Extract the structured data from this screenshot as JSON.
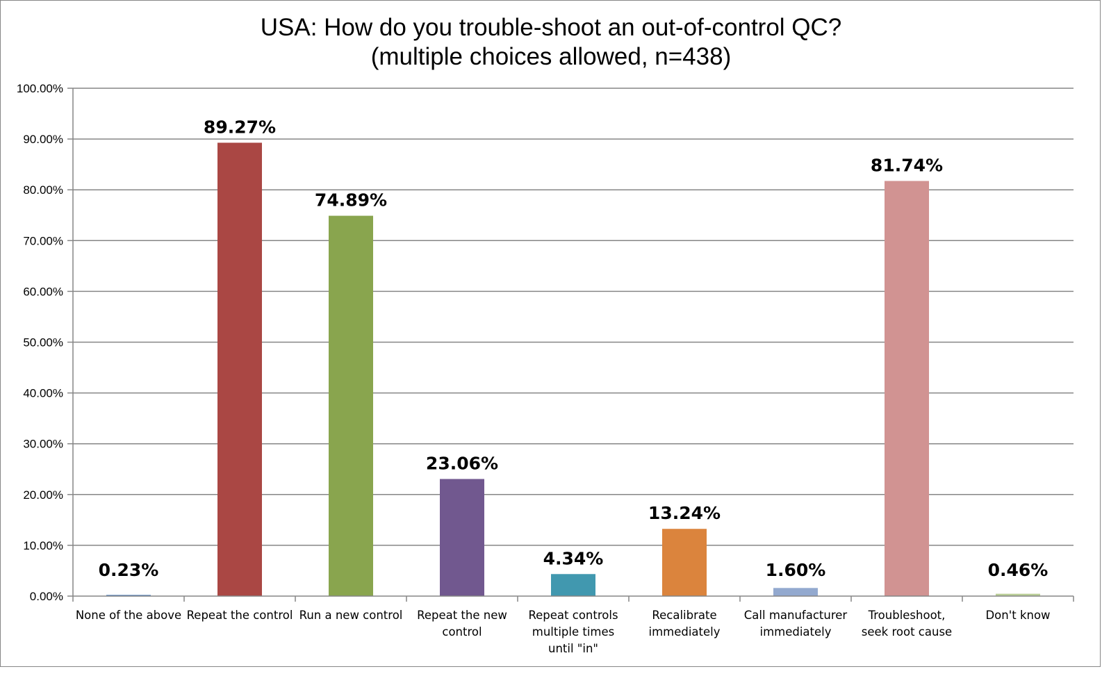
{
  "chart_data": {
    "type": "bar",
    "title": "USA: How do you trouble-shoot an out-of-control QC?",
    "subtitle": "(multiple choices allowed, n=438)",
    "categories": [
      [
        "None of the above"
      ],
      [
        "Repeat the control"
      ],
      [
        "Run a new control"
      ],
      [
        "Repeat the new",
        "control"
      ],
      [
        "Repeat controls",
        "multiple times",
        "until  \"in\""
      ],
      [
        "Recalibrate",
        "immediately"
      ],
      [
        "Call  manufacturer",
        "immediately"
      ],
      [
        "Troubleshoot,",
        "seek root cause"
      ],
      [
        "Don't know"
      ]
    ],
    "values": [
      0.23,
      89.27,
      74.89,
      23.06,
      4.34,
      13.24,
      1.6,
      81.74,
      0.46
    ],
    "data_labels": [
      "0.23%",
      "89.27%",
      "74.89%",
      "23.06%",
      "4.34%",
      "13.24%",
      "1.60%",
      "81.74%",
      "0.46%"
    ],
    "colors": [
      "#4F81BD",
      "#AA4744",
      "#89A54E",
      "#71588F",
      "#4198AF",
      "#DB843D",
      "#93A9CF",
      "#D19392",
      "#B9CD96"
    ],
    "ylim": [
      0,
      100
    ],
    "yticks": [
      "0.00%",
      "10.00%",
      "20.00%",
      "30.00%",
      "40.00%",
      "50.00%",
      "60.00%",
      "70.00%",
      "80.00%",
      "90.00%",
      "100.00%"
    ],
    "grid": true,
    "legend": "none"
  }
}
